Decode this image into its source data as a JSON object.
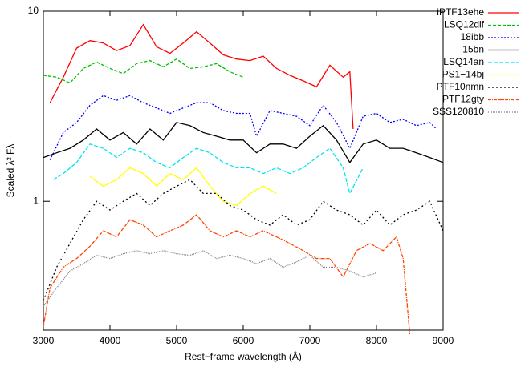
{
  "chart_data": {
    "type": "line",
    "x_label": "Rest−frame wavelength (Å)",
    "y_label": "Scaled λ² Fλ",
    "xlim": [
      3000,
      9000
    ],
    "xticks": [
      3000,
      4000,
      5000,
      6000,
      7000,
      8000,
      9000
    ],
    "ylim": [
      0.21,
      10
    ],
    "yticks": [
      1,
      10
    ],
    "y_log": true,
    "legend": "right",
    "series": [
      {
        "name": "iPTF13ehe",
        "color": "#ff0000",
        "dash": "solid",
        "x": [
          3100,
          3300,
          3500,
          3700,
          3900,
          4100,
          4300,
          4500,
          4700,
          4900,
          5100,
          5300,
          5500,
          5700,
          5900,
          6100,
          6300,
          6500,
          6700,
          6900,
          7100,
          7300,
          7500,
          7600,
          7650
        ],
        "values": [
          3.3,
          4.5,
          6.4,
          7.0,
          6.8,
          6.2,
          6.6,
          8.5,
          6.5,
          6.0,
          6.8,
          7.8,
          6.8,
          5.9,
          5.6,
          5.5,
          5.8,
          5.0,
          4.6,
          4.3,
          4.0,
          5.2,
          4.5,
          4.8,
          2.4
        ]
      },
      {
        "name": "LSQ12dlf",
        "color": "#00c000",
        "dash": "4 2",
        "x": [
          3000,
          3200,
          3400,
          3600,
          3800,
          4000,
          4200,
          4400,
          4600,
          4800,
          5000,
          5200,
          5400,
          5600,
          5800,
          6000
        ],
        "values": [
          4.6,
          4.5,
          4.2,
          5.0,
          5.4,
          5.0,
          4.7,
          5.3,
          5.5,
          5.1,
          5.6,
          5.0,
          5.1,
          5.3,
          4.8,
          4.5
        ]
      },
      {
        "name": "18ibb",
        "color": "#0000ff",
        "dash": "2 2",
        "x": [
          3100,
          3300,
          3500,
          3700,
          3900,
          4100,
          4300,
          4500,
          4700,
          4900,
          5100,
          5300,
          5500,
          5700,
          5900,
          6100,
          6200,
          6400,
          6600,
          6800,
          7000,
          7200,
          7400,
          7600,
          7800,
          8000,
          8200,
          8400,
          8600,
          8800,
          8900
        ],
        "values": [
          1.65,
          2.3,
          2.6,
          3.2,
          3.6,
          3.4,
          3.6,
          3.3,
          3.1,
          2.9,
          3.1,
          3.3,
          3.3,
          3.0,
          2.9,
          2.9,
          2.2,
          3.0,
          2.9,
          2.8,
          2.5,
          3.2,
          2.6,
          1.9,
          2.8,
          2.9,
          2.6,
          2.7,
          2.5,
          2.6,
          2.4
        ]
      },
      {
        "name": "15bn",
        "color": "#000000",
        "dash": "solid",
        "x": [
          3000,
          3200,
          3400,
          3600,
          3800,
          4000,
          4200,
          4400,
          4600,
          4800,
          5000,
          5200,
          5400,
          5600,
          5800,
          6000,
          6200,
          6400,
          6600,
          6800,
          7000,
          7200,
          7400,
          7600,
          7800,
          8000,
          8200,
          8400,
          8600,
          8800,
          9000
        ],
        "values": [
          1.7,
          1.8,
          1.9,
          2.1,
          2.4,
          2.1,
          2.3,
          2.0,
          2.4,
          2.1,
          2.6,
          2.5,
          2.3,
          2.2,
          2.1,
          2.1,
          1.8,
          2.0,
          2.0,
          1.9,
          2.2,
          2.5,
          2.1,
          1.6,
          2.0,
          2.1,
          1.9,
          1.9,
          1.8,
          1.7,
          1.6
        ]
      },
      {
        "name": "LSQ14an",
        "color": "#00e5ee",
        "dash": "5 2",
        "x": [
          3150,
          3300,
          3500,
          3700,
          3900,
          4100,
          4300,
          4500,
          4700,
          4900,
          5100,
          5300,
          5500,
          5700,
          5900,
          6100,
          6300,
          6500,
          6700,
          6900,
          7100,
          7300,
          7500,
          7600,
          7800
        ],
        "values": [
          1.3,
          1.4,
          1.6,
          2.0,
          1.9,
          1.7,
          1.9,
          1.8,
          1.6,
          1.5,
          1.7,
          1.9,
          1.8,
          1.6,
          1.5,
          1.5,
          1.4,
          1.5,
          1.4,
          1.5,
          1.7,
          1.9,
          1.5,
          1.1,
          1.5
        ]
      },
      {
        "name": "PS1−14bj",
        "color": "#ffff00",
        "dash": "solid",
        "x": [
          3700,
          3900,
          4100,
          4300,
          4500,
          4700,
          4900,
          5100,
          5300,
          5500,
          5700,
          5900,
          6100,
          6300,
          6500
        ],
        "values": [
          1.35,
          1.2,
          1.3,
          1.5,
          1.4,
          1.2,
          1.4,
          1.3,
          1.5,
          1.2,
          1.0,
          0.95,
          1.1,
          1.2,
          1.1
        ]
      },
      {
        "name": "PTF10nmn",
        "color": "#000000",
        "dash": "2 3",
        "x": [
          3000,
          3200,
          3400,
          3600,
          3800,
          4000,
          4200,
          4400,
          4600,
          4800,
          5000,
          5200,
          5400,
          5600,
          5800,
          6000,
          6200,
          6400,
          6600,
          6800,
          7000,
          7200,
          7400,
          7600,
          7800,
          8000,
          8200,
          8400,
          8600,
          8800,
          9000
        ],
        "values": [
          0.3,
          0.45,
          0.6,
          0.8,
          1.0,
          0.9,
          1.0,
          1.1,
          0.95,
          1.1,
          1.2,
          1.3,
          1.1,
          1.1,
          0.95,
          0.9,
          0.8,
          0.75,
          0.85,
          0.75,
          0.8,
          1.0,
          0.9,
          0.85,
          0.75,
          0.9,
          0.75,
          0.85,
          0.9,
          1.0,
          0.7
        ]
      },
      {
        "name": "PTF12gty",
        "color": "#ff4500",
        "dash": "4 1 1 1",
        "x": [
          3000,
          3100,
          3300,
          3500,
          3700,
          3900,
          4100,
          4300,
          4500,
          4700,
          4900,
          5100,
          5300,
          5500,
          5700,
          5900,
          6100,
          6300,
          6500,
          6700,
          6900,
          7100,
          7300,
          7500,
          7700,
          7900,
          8100,
          8300,
          8400,
          8500
        ],
        "values": [
          0.22,
          0.35,
          0.45,
          0.5,
          0.58,
          0.7,
          0.65,
          0.8,
          0.75,
          0.65,
          0.7,
          0.75,
          0.85,
          0.7,
          0.65,
          0.7,
          0.65,
          0.7,
          0.65,
          0.6,
          0.55,
          0.5,
          0.5,
          0.4,
          0.55,
          0.6,
          0.55,
          0.65,
          0.5,
          0.2
        ]
      },
      {
        "name": "SSS120810",
        "color": "#808080",
        "dash": "1 1",
        "x": [
          3000,
          3200,
          3400,
          3600,
          3800,
          4000,
          4200,
          4400,
          4600,
          4800,
          5000,
          5200,
          5400,
          5600,
          5800,
          6000,
          6200,
          6400,
          6600,
          6800,
          7000,
          7200,
          7400,
          7600,
          7800,
          8000
        ],
        "values": [
          0.28,
          0.35,
          0.43,
          0.47,
          0.52,
          0.5,
          0.53,
          0.55,
          0.53,
          0.55,
          0.53,
          0.52,
          0.55,
          0.5,
          0.52,
          0.5,
          0.47,
          0.5,
          0.45,
          0.48,
          0.52,
          0.45,
          0.45,
          0.43,
          0.4,
          0.42
        ]
      }
    ]
  }
}
